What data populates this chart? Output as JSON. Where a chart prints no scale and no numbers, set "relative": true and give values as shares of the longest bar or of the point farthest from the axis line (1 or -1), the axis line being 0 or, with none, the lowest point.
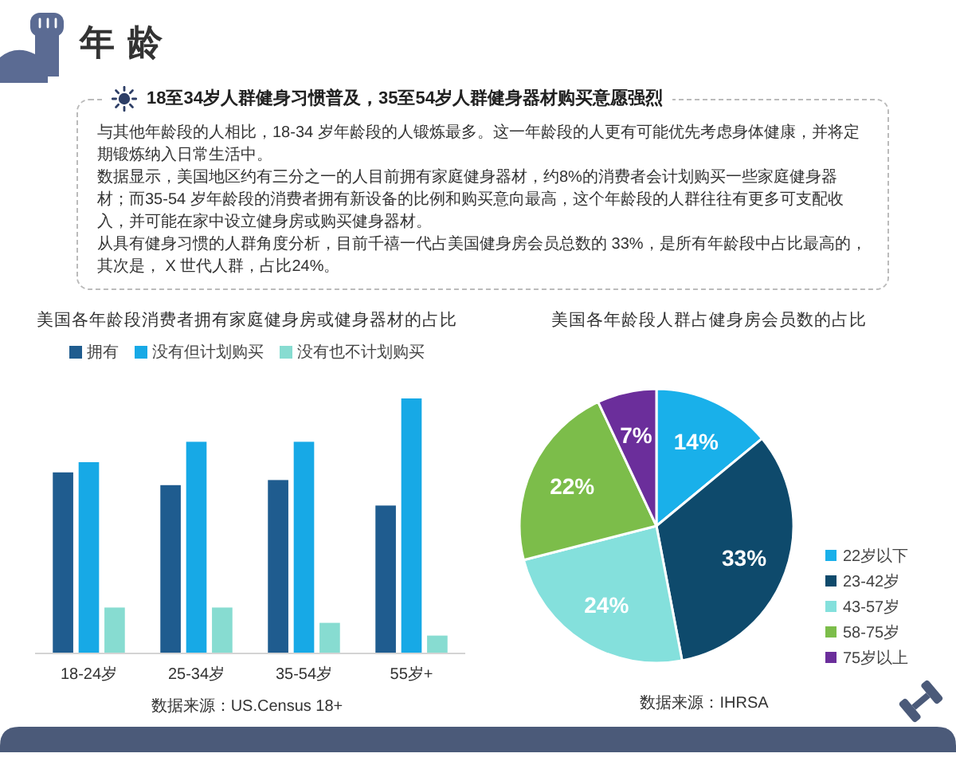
{
  "chart_data": [
    {
      "type": "other",
      "title": "年龄",
      "subtitle": "18至34岁人群健身习惯普及，35至54岁人群健身器材购买意愿强烈",
      "annotations": [
        "与其他年龄段的人相比，18-34 岁年龄段的人锻炼最多。这一年龄段的人更有可能优先考虑身体健康，并将定期锻炼纳入日常生活中。",
        "数据显示，美国地区约有三分之一的人目前拥有家庭健身器材，约8%的消费者会计划购买一些家庭健身器材；而35-54 岁年龄段的消费者拥有新设备的比例和购买意向最高，这个年龄段的人群往往有更多可支配收入，并可能在家中设立健身房或购买健身器材。",
        "从具有健身习惯的人群角度分析，目前千禧一代占美国健身房会员总数的 33%，是所有年龄段中占比最高的，其次是， X 世代人群，占比24%。"
      ]
    },
    {
      "type": "bar",
      "title": "美国各年龄段消费者拥有家庭健身房或健身器材的占比",
      "categories": [
        "18-24岁",
        "25-34岁",
        "35-54岁",
        "55岁+"
      ],
      "relative": true,
      "legend": "top",
      "series": [
        {
          "name": "拥有",
          "color": "#1f5c8f",
          "values": [
            0.71,
            0.66,
            0.68,
            0.58
          ]
        },
        {
          "name": "没有但计划购买",
          "color": "#17a9e6",
          "values": [
            0.75,
            0.83,
            0.83,
            1
          ]
        },
        {
          "name": "没有也不计划购买",
          "color": "#87dcd1",
          "values": [
            0.18,
            0.18,
            0.12,
            0.07
          ]
        }
      ],
      "annotations": [
        "数据来源：US.Census 18+"
      ]
    },
    {
      "type": "pie",
      "title": "美国各年龄段人群占健身房会员数的占比",
      "categories": [
        "22岁以下",
        "23-42岁",
        "43-57岁",
        "58-75岁",
        "75岁以上"
      ],
      "values": [
        14,
        33,
        24,
        22,
        7
      ],
      "colors": [
        "#19b0ea",
        "#0e4a6c",
        "#84e0dc",
        "#7cbd4a",
        "#6b2e9b"
      ],
      "value_labels": [
        "14%",
        "33%",
        "24%",
        "22%",
        "7%"
      ],
      "legend": "right",
      "annotations": [
        "数据来源：IHRSA"
      ]
    }
  ]
}
